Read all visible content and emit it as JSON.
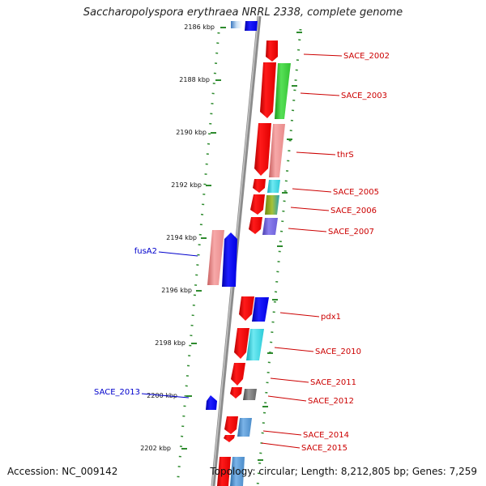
{
  "title": "Saccharopolyspora erythraea NRRL 2338, complete genome",
  "footer": {
    "accession": "Accession: NC_009142",
    "topology": "Topology: circular; Length: 8,212,805 bp; Genes: 7,259"
  },
  "kbp_labels": [
    "2186 kbp",
    "2188 kbp",
    "2190 kbp",
    "2192 kbp",
    "2194 kbp",
    "2196 kbp",
    "2198 kbp",
    "2200 kbp",
    "2202 kbp"
  ],
  "genes_right": [
    "SACE_2002",
    "SACE_2003",
    "thrS",
    "SACE_2005",
    "SACE_2006",
    "SACE_2007",
    "pdx1",
    "SACE_2010",
    "SACE_2011",
    "SACE_2012",
    "SACE_2014",
    "SACE_2015"
  ],
  "genes_left": [
    "fusA2",
    "SACE_2013"
  ],
  "colors": {
    "backbone": "#8c8c8c",
    "dots": "#2e8b2e",
    "forward_label": "#cc0000",
    "reverse_label": "#0000cc",
    "cds": "#ff0000"
  }
}
